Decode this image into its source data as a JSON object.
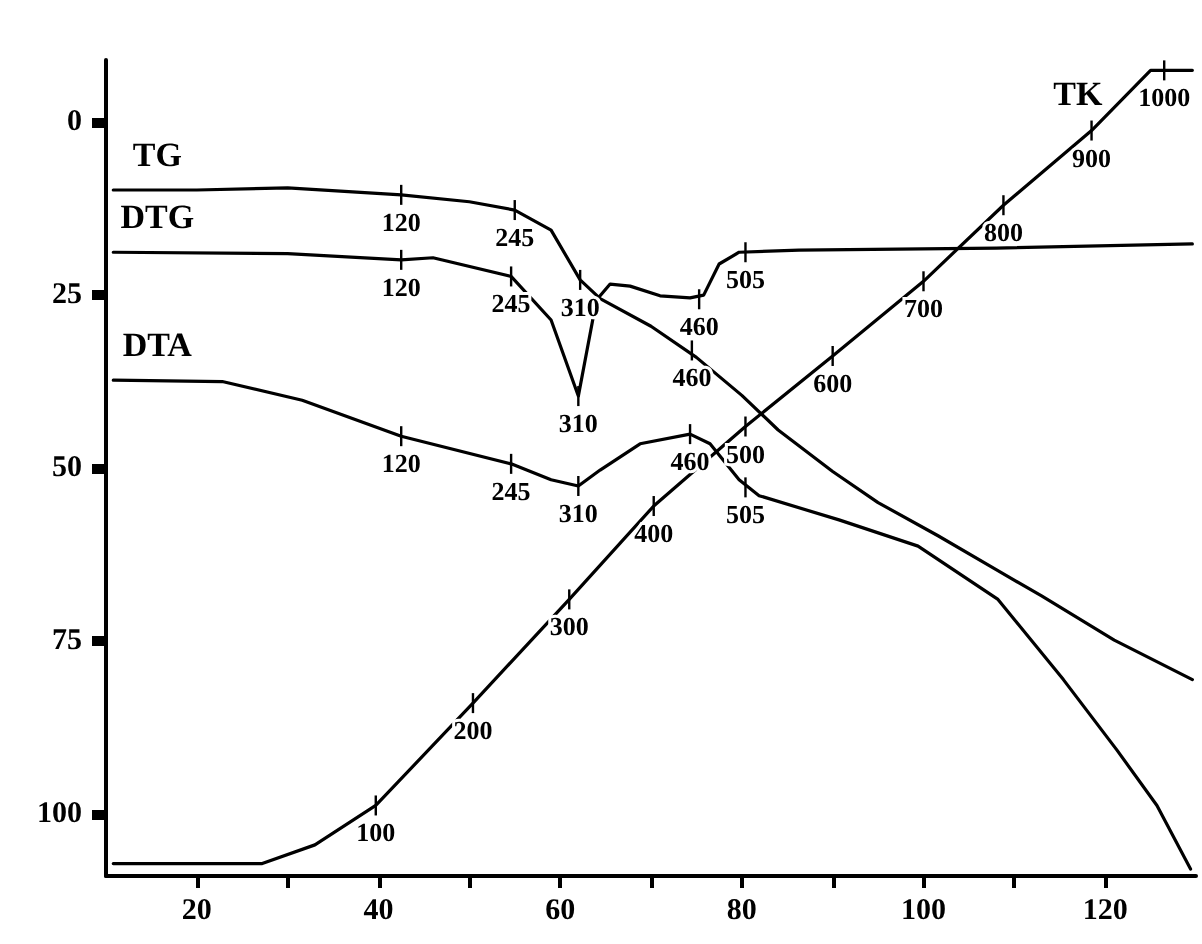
{
  "chart_data": {
    "type": "line",
    "xlim": [
      10,
      130
    ],
    "xticks": [
      20,
      {
        "value": 30,
        "label": null
      },
      40,
      {
        "value": 50,
        "label": null
      },
      60,
      {
        "value": 70,
        "label": null
      },
      80,
      {
        "value": 90,
        "label": null
      },
      100,
      {
        "value": 110,
        "label": null
      },
      120
    ],
    "ylim": [
      109,
      -9
    ],
    "yticks": [
      0,
      25,
      50,
      75,
      100
    ],
    "grid": false,
    "legend": false,
    "marker": "none",
    "line_style": "solid",
    "series": [
      {
        "name": "TG",
        "color": "#000000",
        "x": [
          10.8,
          20,
          30,
          42.5,
          50,
          55,
          59,
          62.2,
          64.4,
          70,
          75,
          80,
          84,
          90,
          95,
          101.6,
          108,
          113,
          121,
          129.6
        ],
        "values": [
          9.8,
          9.8,
          9.5,
          10.5,
          11.5,
          12.7,
          15.6,
          22.8,
          25.5,
          29.5,
          34,
          39.5,
          44.5,
          50.5,
          55,
          59.8,
          64.7,
          68.5,
          74.9,
          80.6
        ]
      },
      {
        "name": "DTG",
        "color": "#000000",
        "x": [
          10.8,
          30,
          42.5,
          46,
          54.6,
          59,
          62,
          64,
          65.5,
          67.7,
          71,
          74.3,
          75.8,
          77.5,
          79.7,
          86.3,
          108,
          129.6
        ],
        "values": [
          18.8,
          19,
          19.9,
          19.6,
          22.3,
          28.6,
          39.6,
          25.7,
          23.4,
          23.7,
          25.1,
          25.4,
          25,
          20.5,
          18.8,
          18.5,
          18.2,
          17.6
        ]
      },
      {
        "name": "DTA",
        "color": "#000000",
        "x": [
          10.8,
          22.8,
          31.6,
          42.5,
          54.6,
          59,
          62,
          64.4,
          68.8,
          74.3,
          76.5,
          79.7,
          81.9,
          90.7,
          99.4,
          108.2,
          115.4,
          121.3,
          125.7,
          129.4
        ],
        "values": [
          37.3,
          37.5,
          40.2,
          45.4,
          49.4,
          51.7,
          52.6,
          50.3,
          46.5,
          45.1,
          46.5,
          51.7,
          54,
          57.5,
          61.3,
          69,
          80.6,
          90.8,
          98.8,
          108
        ]
      },
      {
        "name": "TK",
        "color": "#000000",
        "x": [
          10.8,
          27.2,
          33,
          39.7,
          50.4,
          61,
          70.3,
          80.4,
          90,
          100,
          108.8,
          118.5,
          125,
          129.6
        ],
        "values": [
          107.2,
          107.2,
          104.5,
          98.8,
          84,
          69,
          55.5,
          44,
          33.8,
          23,
          12,
          1.2,
          -7.5,
          -7.5
        ]
      }
    ],
    "annotations": [
      {
        "text": "120",
        "x": 42.5,
        "y": 10.5
      },
      {
        "text": "245",
        "x": 55,
        "y": 12.7
      },
      {
        "text": "310",
        "x": 62.2,
        "y": 22.8
      },
      {
        "text": "460",
        "x": 74.5,
        "y": 33
      },
      {
        "text": "120",
        "x": 42.5,
        "y": 19.9
      },
      {
        "text": "245",
        "x": 54.6,
        "y": 22.3
      },
      {
        "text": "310",
        "x": 62,
        "y": 39.6
      },
      {
        "text": "460",
        "x": 75.3,
        "y": 25.6
      },
      {
        "text": "505",
        "x": 80.4,
        "y": 18.8
      },
      {
        "text": "120",
        "x": 42.5,
        "y": 45.4
      },
      {
        "text": "245",
        "x": 54.6,
        "y": 49.4
      },
      {
        "text": "310",
        "x": 62,
        "y": 52.6
      },
      {
        "text": "460",
        "x": 74.3,
        "y": 45.1
      },
      {
        "text": "505",
        "x": 80.4,
        "y": 52.8
      },
      {
        "text": "100",
        "x": 39.7,
        "y": 98.8
      },
      {
        "text": "200",
        "x": 50.4,
        "y": 84
      },
      {
        "text": "300",
        "x": 61,
        "y": 69
      },
      {
        "text": "400",
        "x": 70.3,
        "y": 55.5
      },
      {
        "text": "500",
        "x": 80.4,
        "y": 44
      },
      {
        "text": "600",
        "x": 90,
        "y": 33.8
      },
      {
        "text": "700",
        "x": 100,
        "y": 23
      },
      {
        "text": "800",
        "x": 108.8,
        "y": 12
      },
      {
        "text": "900",
        "x": 118.5,
        "y": 1.2
      },
      {
        "text": "1000",
        "x": 126.5,
        "y": -7.5
      }
    ]
  }
}
